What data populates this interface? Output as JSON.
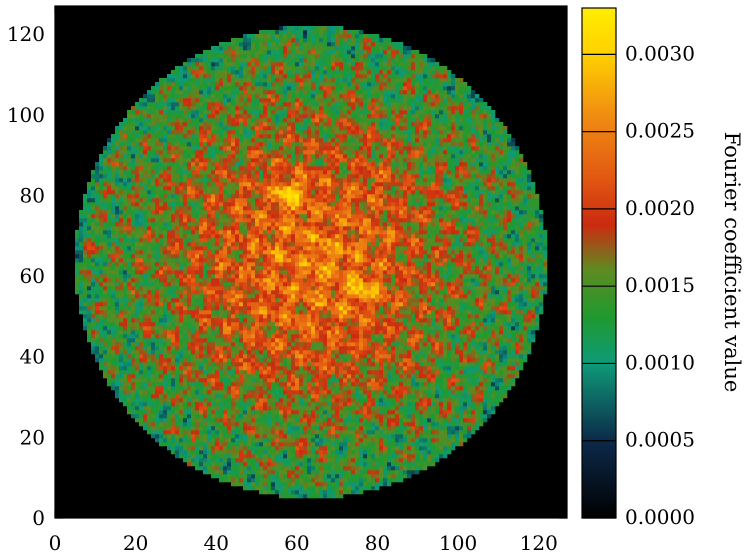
{
  "chart_data": {
    "type": "heatmap",
    "title": "",
    "x_ticks": [
      0,
      20,
      40,
      60,
      80,
      100,
      120
    ],
    "y_ticks": [
      0,
      20,
      40,
      60,
      80,
      100,
      120
    ],
    "x_range": [
      0,
      127
    ],
    "y_range": [
      0,
      127
    ],
    "grid_size": 128,
    "disk": {
      "center": [
        63.5,
        63.5
      ],
      "radius": 59
    },
    "hotspots": [
      {
        "x": 58,
        "y": 81,
        "value": 0.0031
      },
      {
        "x": 76,
        "y": 56,
        "value": 0.0029
      },
      {
        "x": 68,
        "y": 64,
        "value": 0.0025
      },
      {
        "x": 80,
        "y": 84,
        "value": 0.0024
      }
    ],
    "colorbar": {
      "label": "Fourier coefficient value",
      "range": [
        0.0,
        0.0033
      ],
      "ticks": [
        0.0,
        0.0005,
        0.001,
        0.0015,
        0.002,
        0.0025,
        0.003
      ],
      "tick_labels": [
        "0.0000",
        "0.0005",
        "0.0010",
        "0.0015",
        "0.0020",
        "0.0025",
        "0.0030"
      ],
      "stops": [
        {
          "v": 0.0,
          "color": "#000000"
        },
        {
          "v": 0.0005,
          "color": "#0c2a4a"
        },
        {
          "v": 0.001,
          "color": "#0e9a78"
        },
        {
          "v": 0.0013,
          "color": "#1f9a2f"
        },
        {
          "v": 0.0016,
          "color": "#5c8c22"
        },
        {
          "v": 0.0019,
          "color": "#cc2a10"
        },
        {
          "v": 0.0022,
          "color": "#e25812"
        },
        {
          "v": 0.0026,
          "color": "#f08c12"
        },
        {
          "v": 0.003,
          "color": "#ffd000"
        },
        {
          "v": 0.0033,
          "color": "#ffee00"
        }
      ]
    }
  }
}
